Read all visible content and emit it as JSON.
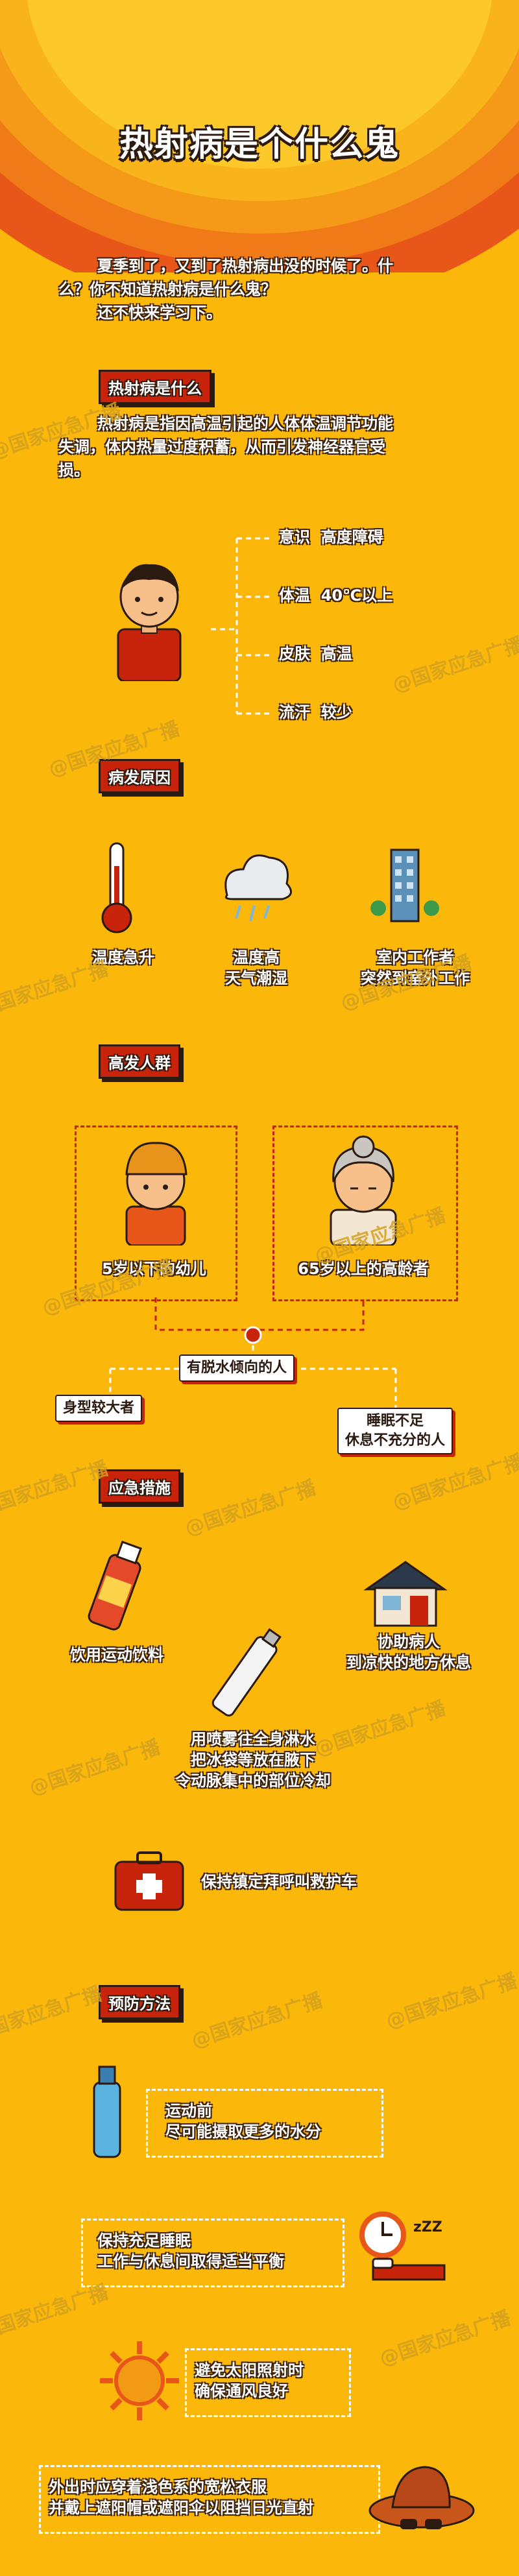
{
  "title": "热射病是个什么鬼",
  "intro": [
    "夏季到了，又到了热射病出没的时候了。什",
    "么？你不知道热射病是什么鬼？",
    "还不快来学习下。"
  ],
  "sections": {
    "what": {
      "badge": "热射病是什么",
      "text": [
        "热射病是指因高温引起的人体体温调节功能",
        "失调，体内热量过度积蓄，从而引发神经器官受",
        "损。"
      ],
      "symptoms": [
        {
          "key": "意识",
          "value": "高度障碍"
        },
        {
          "key": "体温",
          "value": "40℃以上"
        },
        {
          "key": "皮肤",
          "value": "高温"
        },
        {
          "key": "流汗",
          "value": "较少"
        }
      ]
    },
    "causes": {
      "badge": "病发原因",
      "items": [
        "温度急升",
        "温度高\n天气潮湿",
        "室内工作者\n突然到室外工作"
      ]
    },
    "risk": {
      "badge": "高发人群",
      "kid": "5岁以下的幼儿",
      "elder": "65岁以上的高龄者",
      "dehydrated": "有脱水倾向的人",
      "big": "身型较大者",
      "sleep": "睡眠不足\n休息不充分的人"
    },
    "emergency": {
      "badge": "应急措施",
      "drink": "饮用运动饮料",
      "move": "协助病人\n到凉快的地方休息",
      "spray": "用喷雾往全身淋水\n把冰袋等放在腋下\n令动脉集中的部位冷却",
      "call": "保持镇定拜呼叫救护车"
    },
    "prevention": {
      "badge": "预防方法",
      "water": "运动前\n尽可能摄取更多的水分",
      "sleep": "保持充足睡眠\n工作与休息间取得适当平衡",
      "sun": "避免太阳照射时\n确保通风良好",
      "clothes": "外出时应穿着浅色系的宽松衣服\n并戴上遮阳帽或遮阳伞以阻挡日光直射"
    }
  },
  "watermark": "@国家应急广播",
  "icons": [
    "child-icon",
    "thermometer-icon",
    "cloud-icon",
    "building-icon",
    "kid-icon",
    "elder-icon",
    "drink-icon",
    "house-icon",
    "spray-icon",
    "first-aid-icon",
    "bottle-icon",
    "alarm-bed-icon",
    "sun-icon",
    "hat-icon"
  ],
  "colors": {
    "bg": "#fbb80a",
    "red": "#c8240c",
    "outline": "#2a1a10"
  }
}
